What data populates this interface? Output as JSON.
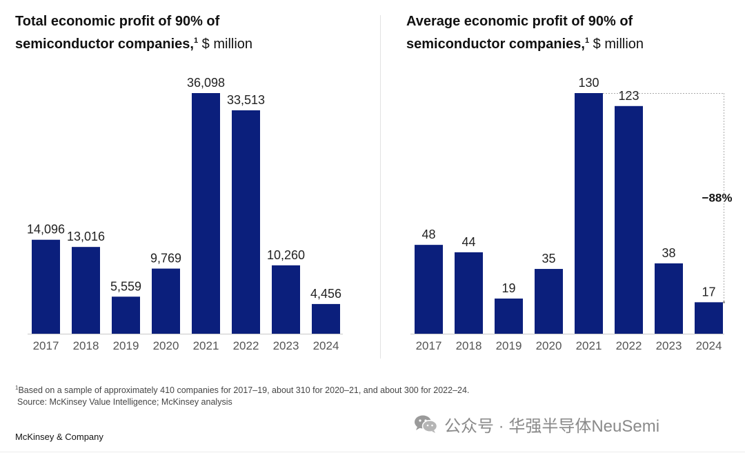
{
  "colors": {
    "bar": "#0b1f7c",
    "axis": "#c8c8c8",
    "label": "#222222",
    "tick": "#555555",
    "annotation": "#111111"
  },
  "chart_data": [
    {
      "type": "bar",
      "title": "Total economic profit of 90% of semiconductor companies,",
      "title_sup": "1",
      "unit": "$ million",
      "categories": [
        "2017",
        "2018",
        "2019",
        "2020",
        "2021",
        "2022",
        "2023",
        "2024"
      ],
      "values": [
        14096,
        13016,
        5559,
        9769,
        36098,
        33513,
        10260,
        4456
      ],
      "labels": [
        "14,096",
        "13,016",
        "5,559",
        "9,769",
        "36,098",
        "33,513",
        "10,260",
        "4,456"
      ],
      "ylim": [
        0,
        36098
      ],
      "grid": false,
      "legend": "none"
    },
    {
      "type": "bar",
      "title": "Average economic profit of 90% of semiconductor companies,",
      "title_sup": "1",
      "unit": "$ million",
      "categories": [
        "2017",
        "2018",
        "2019",
        "2020",
        "2021",
        "2022",
        "2023",
        "2024"
      ],
      "values": [
        48,
        44,
        19,
        35,
        130,
        123,
        38,
        17
      ],
      "labels": [
        "48",
        "44",
        "19",
        "35",
        "130",
        "123",
        "38",
        "17"
      ],
      "ylim": [
        0,
        130
      ],
      "grid": false,
      "legend": "none",
      "annotation": {
        "text": "−88%",
        "from_category": "2021",
        "to_category": "2024"
      }
    }
  ],
  "footnote": {
    "marker": "1",
    "text": "Based on a sample of approximately 410 companies for 2017–19, about 310 for 2020–21, and about 300 for 2022–24.",
    "source": "Source: McKinsey Value Intelligence; McKinsey analysis"
  },
  "brand": "McKinsey & Company",
  "watermark": {
    "text": "公众号 · 华强半导体NeuSemi",
    "icon": "wechat-icon"
  }
}
